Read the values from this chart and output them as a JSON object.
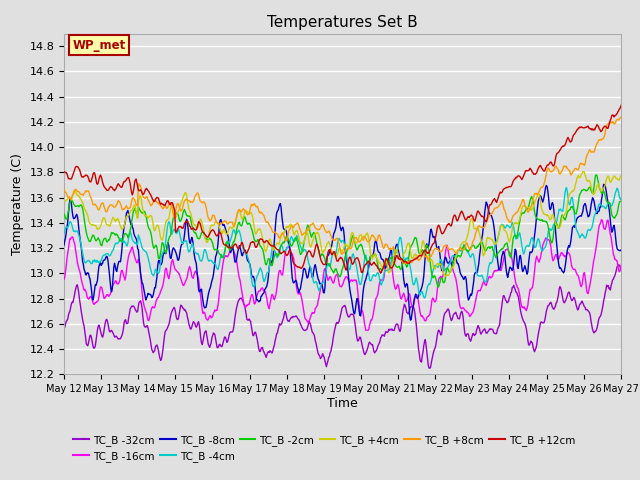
{
  "title": "Temperatures Set B",
  "xlabel": "Time",
  "ylabel": "Temperature (C)",
  "ylim": [
    12.2,
    14.9
  ],
  "series_labels": [
    "TC_B -32cm",
    "TC_B -16cm",
    "TC_B -8cm",
    "TC_B -4cm",
    "TC_B -2cm",
    "TC_B +4cm",
    "TC_B +8cm",
    "TC_B +12cm"
  ],
  "series_colors": [
    "#9900CC",
    "#FF00FF",
    "#0000CC",
    "#00CCCC",
    "#00CC00",
    "#CCCC00",
    "#FF9900",
    "#CC0000"
  ],
  "wp_met_label": "WP_met",
  "wp_met_bg": "#FFFFAA",
  "wp_met_border": "#AA0000",
  "wp_met_text": "#AA0000",
  "x_tick_labels": [
    "May 12",
    "May 13",
    "May 14",
    "May 15",
    "May 16",
    "May 17",
    "May 18",
    "May 19",
    "May 20",
    "May 21",
    "May 22",
    "May 23",
    "May 24",
    "May 25",
    "May 26",
    "May 27"
  ],
  "background_color": "#E0E0E0",
  "plot_bg_color": "#E0E0E0",
  "grid_color": "#FFFFFF",
  "n_points": 800
}
